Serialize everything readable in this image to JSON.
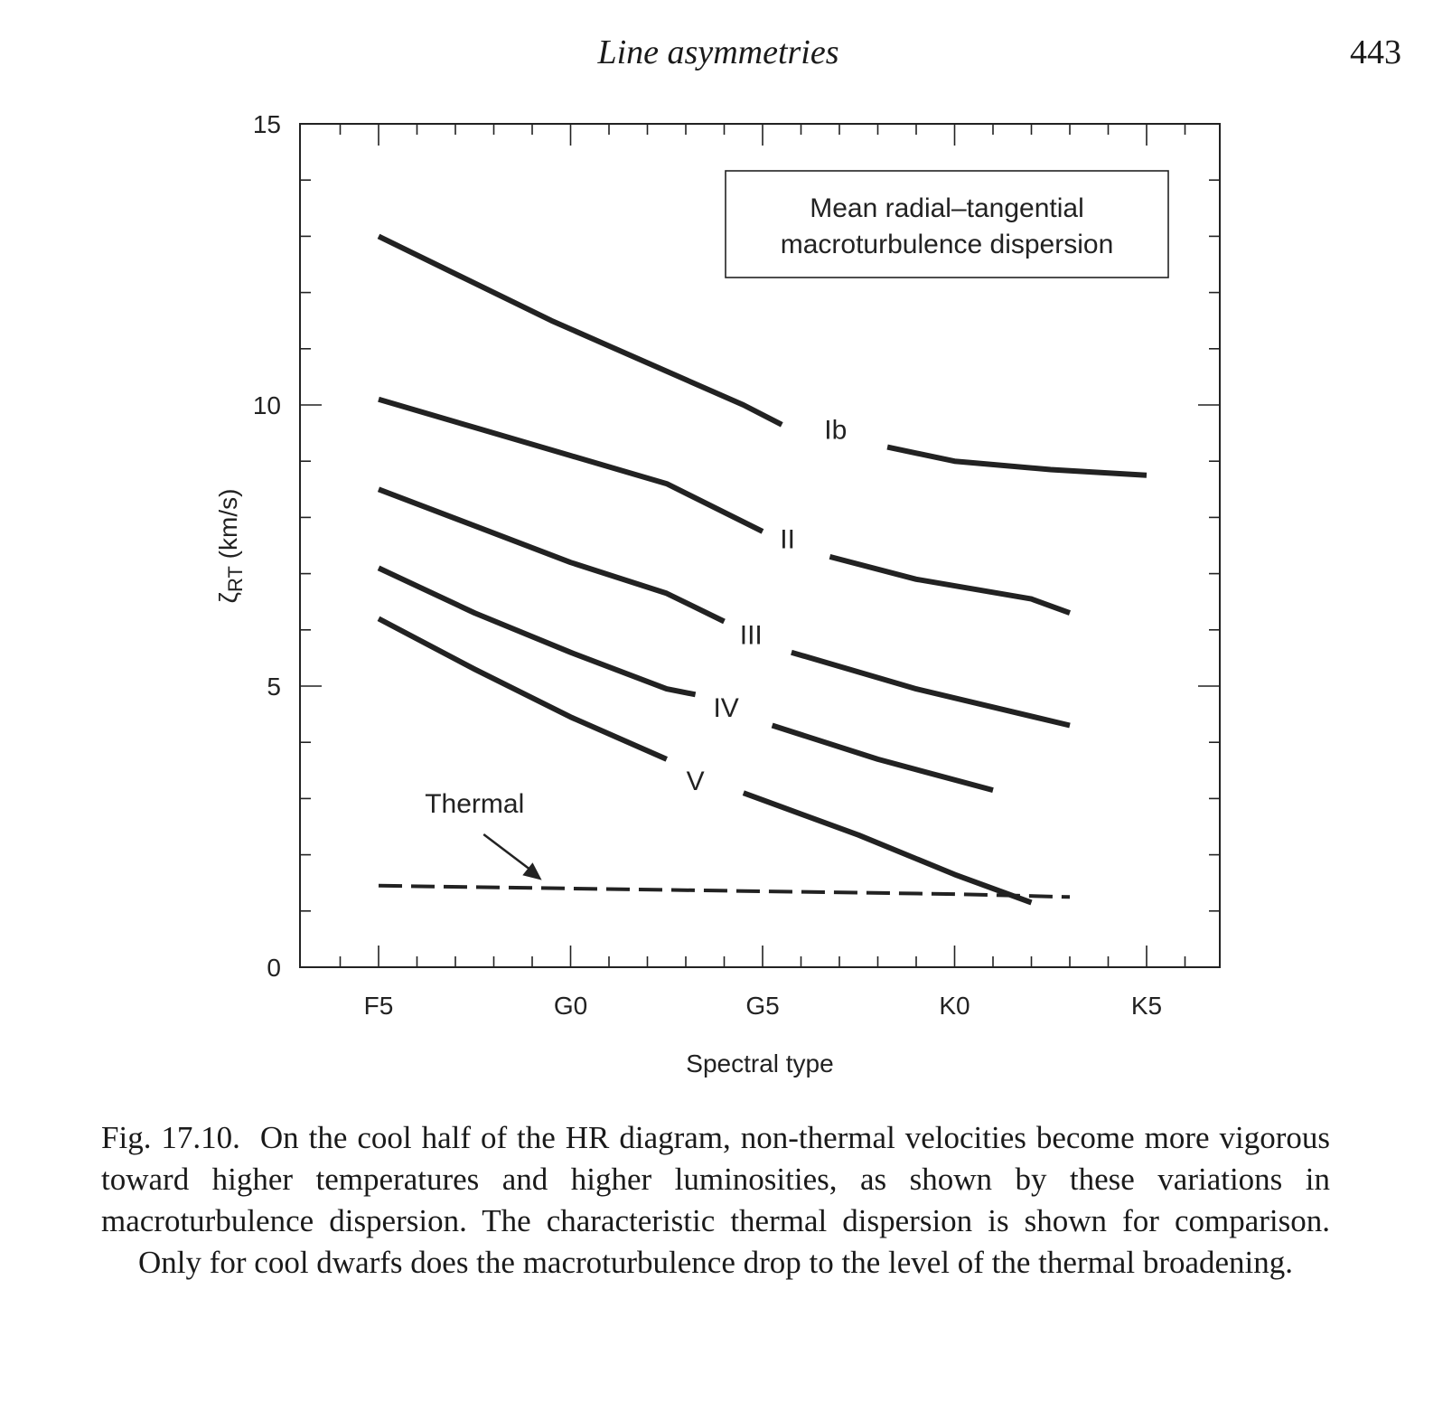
{
  "header": {
    "title": "Line asymmetries",
    "page_number": "443"
  },
  "chart_data": {
    "type": "line",
    "title": "",
    "legend_box": "Mean radial–tangential macroturbulence dispersion",
    "legend_lines": [
      "Mean radial–tangential",
      "macroturbulence dispersion"
    ],
    "xlabel": "Spectral type",
    "ylabel_symbol": "ζ",
    "ylabel_subscript": "RT",
    "ylabel_unit": "(km/s)",
    "categories": [
      "F5",
      "G0",
      "G5",
      "K0",
      "K5"
    ],
    "ylim": [
      0,
      15
    ],
    "yticks": [
      0,
      5,
      10,
      15
    ],
    "grid": false,
    "series": [
      {
        "name": "Ib",
        "segments": [
          [
            [
              0,
              13.0
            ],
            [
              0.45,
              12.25
            ],
            [
              0.9,
              11.5
            ],
            [
              1.4,
              10.75
            ],
            [
              1.9,
              10.0
            ],
            [
              2.1,
              9.65
            ]
          ],
          [
            [
              2.65,
              9.25
            ],
            [
              3.0,
              9.0
            ],
            [
              3.5,
              8.85
            ],
            [
              4.0,
              8.75
            ]
          ]
        ]
      },
      {
        "name": "II",
        "segments": [
          [
            [
              0,
              10.1
            ],
            [
              0.5,
              9.6
            ],
            [
              1.0,
              9.1
            ],
            [
              1.5,
              8.6
            ],
            [
              2.0,
              7.75
            ]
          ],
          [
            [
              2.35,
              7.3
            ],
            [
              2.8,
              6.9
            ],
            [
              3.4,
              6.55
            ],
            [
              3.6,
              6.3
            ]
          ]
        ]
      },
      {
        "name": "III",
        "segments": [
          [
            [
              0,
              8.5
            ],
            [
              0.5,
              7.85
            ],
            [
              1.0,
              7.2
            ],
            [
              1.5,
              6.65
            ],
            [
              1.8,
              6.15
            ]
          ],
          [
            [
              2.15,
              5.6
            ],
            [
              2.8,
              4.95
            ],
            [
              3.6,
              4.3
            ]
          ]
        ]
      },
      {
        "name": "IV",
        "segments": [
          [
            [
              0,
              7.1
            ],
            [
              0.5,
              6.3
            ],
            [
              1.0,
              5.6
            ],
            [
              1.5,
              4.95
            ],
            [
              1.65,
              4.85
            ]
          ],
          [
            [
              2.05,
              4.3
            ],
            [
              2.6,
              3.7
            ],
            [
              3.2,
              3.15
            ]
          ]
        ]
      },
      {
        "name": "V",
        "segments": [
          [
            [
              0,
              6.2
            ],
            [
              0.5,
              5.3
            ],
            [
              1.0,
              4.45
            ],
            [
              1.5,
              3.7
            ]
          ],
          [
            [
              1.9,
              3.1
            ],
            [
              2.5,
              2.35
            ],
            [
              3.0,
              1.65
            ],
            [
              3.4,
              1.15
            ]
          ]
        ]
      },
      {
        "name": "Thermal",
        "dashed": true,
        "segments": [
          [
            [
              0,
              1.45
            ],
            [
              1.0,
              1.4
            ],
            [
              2.0,
              1.35
            ],
            [
              3.0,
              1.3
            ],
            [
              3.6,
              1.25
            ]
          ]
        ]
      }
    ],
    "annotations": [
      {
        "text": "Ib",
        "x": 2.38,
        "y": 9.4
      },
      {
        "text": "II",
        "x": 2.13,
        "y": 7.45
      },
      {
        "text": "III",
        "x": 1.94,
        "y": 5.75
      },
      {
        "text": "IV",
        "x": 1.81,
        "y": 4.45
      },
      {
        "text": "V",
        "x": 1.65,
        "y": 3.15
      },
      {
        "text": "Thermal",
        "x": 0.5,
        "y": 2.75,
        "arrow_to": [
          0.85,
          1.55
        ]
      }
    ]
  },
  "caption": {
    "label": "Fig. 17.10.",
    "text": "On the cool half of the HR diagram, non-thermal velocities become more vigorous toward higher temperatures and higher luminosities, as shown by these variations in macroturbulence dispersion. The characteristic thermal dispersion is shown for comparison. Only for cool dwarfs does the macroturbulence drop to the level of the thermal broadening."
  }
}
